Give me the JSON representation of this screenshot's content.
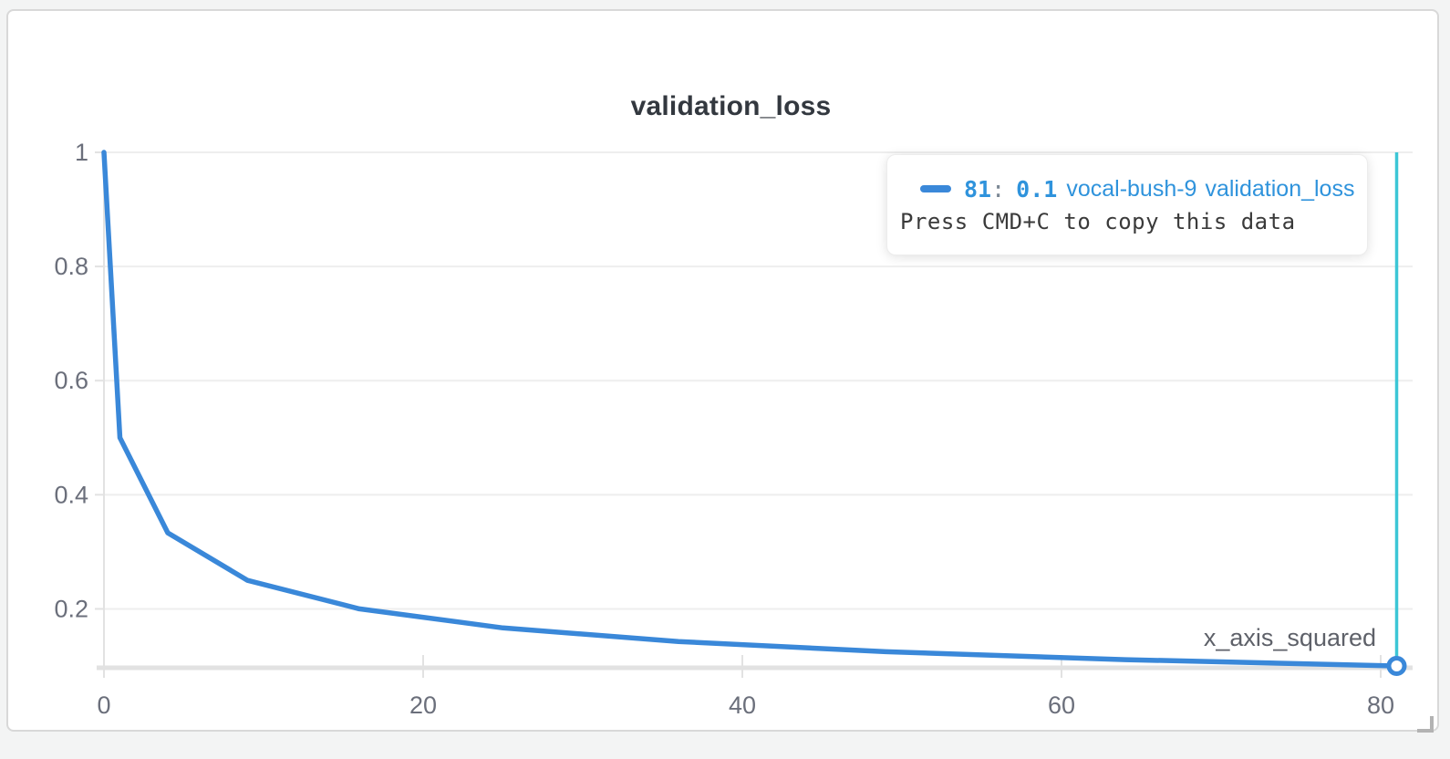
{
  "panel": {
    "title": "validation_loss"
  },
  "colors": {
    "line": "#3a88d9",
    "crosshair": "#3cc6d6",
    "grid": "#eeeeee",
    "axis": "#e2e2e2",
    "tick_label": "#6b6f7b",
    "title_text": "#33383f",
    "axis_title_text": "#5e6169",
    "tooltip_accent": "#2f93dc",
    "hint_text": "#3a3a3a"
  },
  "tooltip": {
    "series_value": "81",
    "separator": ":",
    "point_value": "0.1",
    "run_name": "vocal-bush-9",
    "metric_name": "validation_loss",
    "hint": "Press CMD+C to copy this data"
  },
  "chart_data": {
    "type": "line",
    "title": "validation_loss",
    "xlabel": "x_axis_squared",
    "ylabel": "",
    "x": [
      0,
      1,
      4,
      9,
      16,
      25,
      36,
      49,
      64,
      81
    ],
    "series": [
      {
        "name": "vocal-bush-9 validation_loss",
        "values": [
          1,
          0.5,
          0.3333,
          0.25,
          0.2,
          0.1667,
          0.1429,
          0.125,
          0.1111,
          0.1
        ]
      }
    ],
    "xlim": [
      0,
      82
    ],
    "ylim": [
      0.1,
      1.0
    ],
    "x_ticks": [
      0,
      20,
      40,
      60,
      80
    ],
    "x_tick_labels": [
      "0",
      "20",
      "40",
      "60",
      "80"
    ],
    "y_ticks": [
      0.2,
      0.4,
      0.6,
      0.8,
      1
    ],
    "y_tick_labels": [
      "0.2",
      "0.4",
      "0.6",
      "0.8",
      "1"
    ],
    "grid": "horizontal",
    "legend_position": "none",
    "highlight": {
      "x": 81,
      "y": 0.1
    }
  }
}
